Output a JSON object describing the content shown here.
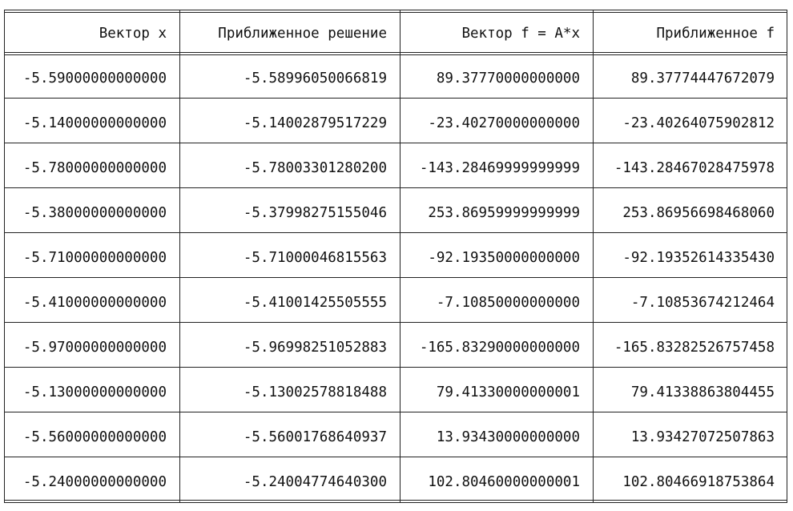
{
  "table": {
    "headers": [
      "Вектор x",
      "Приближенное решение",
      "Вектор f = A*x",
      "Приближенное f"
    ],
    "rows": [
      [
        "-5.59000000000000",
        "-5.58996050066819",
        "89.37770000000000",
        "89.37774447672079"
      ],
      [
        "-5.14000000000000",
        "-5.14002879517229",
        "-23.40270000000000",
        "-23.40264075902812"
      ],
      [
        "-5.78000000000000",
        "-5.78003301280200",
        "-143.28469999999999",
        "-143.28467028475978"
      ],
      [
        "-5.38000000000000",
        "-5.37998275155046",
        "253.86959999999999",
        "253.86956698468060"
      ],
      [
        "-5.71000000000000",
        "-5.71000046815563",
        "-92.19350000000000",
        "-92.19352614335430"
      ],
      [
        "-5.41000000000000",
        "-5.41001425505555",
        "-7.10850000000000",
        "-7.10853674212464"
      ],
      [
        "-5.97000000000000",
        "-5.96998251052883",
        "-165.83290000000000",
        "-165.83282526757458"
      ],
      [
        "-5.13000000000000",
        "-5.13002578818488",
        "79.41330000000001",
        "79.41338863804455"
      ],
      [
        "-5.56000000000000",
        "-5.56001768640937",
        "13.93430000000000",
        "13.93427072507863"
      ],
      [
        "-5.24000000000000",
        "-5.24004774640300",
        "102.80460000000001",
        "102.80466918753864"
      ]
    ]
  }
}
